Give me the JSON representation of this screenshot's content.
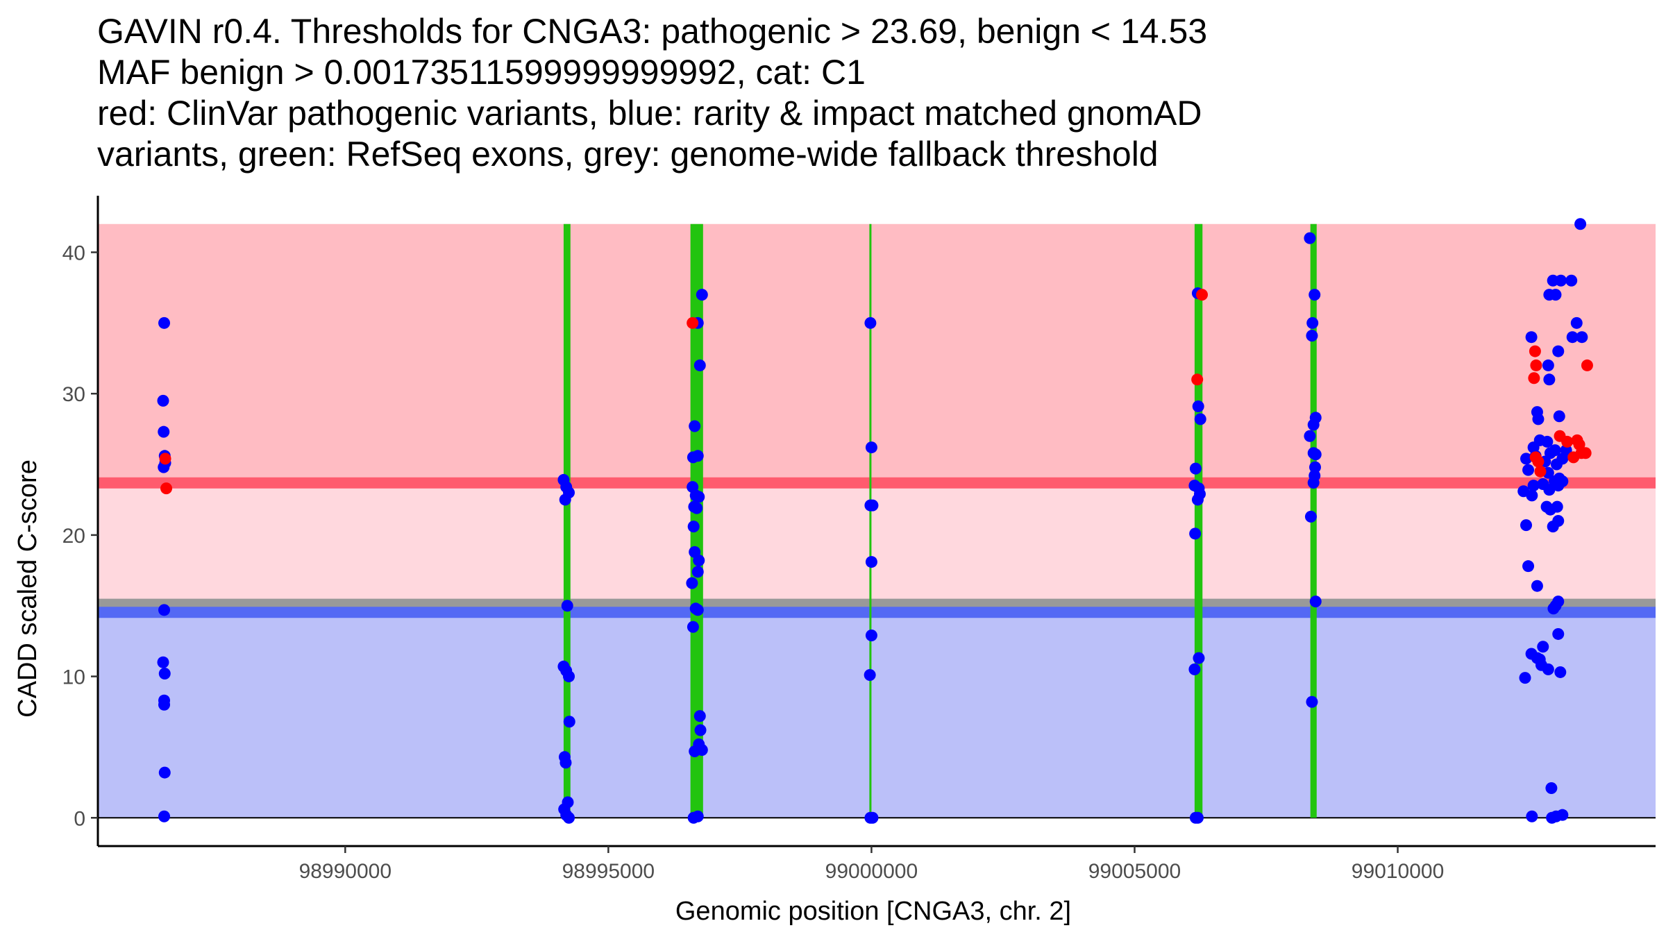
{
  "chart_data": {
    "type": "scatter",
    "title_lines": [
      "GAVIN r0.4. Thresholds for CNGA3: pathogenic > 23.69, benign < 14.53",
      "MAF benign > 0.00173511599999999992, cat: C1",
      "red: ClinVar pathogenic variants, blue: rarity & impact matched gnomAD",
      "variants, green: RefSeq exons, grey: genome-wide fallback threshold"
    ],
    "xlabel": "Genomic position [CNGA3, chr. 2]",
    "ylabel": "CADD scaled C-score",
    "xlim": [
      98985300,
      99014900
    ],
    "ylim": [
      -2,
      44
    ],
    "x_ticks": [
      98990000,
      98995000,
      99000000,
      99005000,
      99010000
    ],
    "x_tick_labels": [
      "98990000",
      "98995000",
      "99000000",
      "99005000",
      "99010000"
    ],
    "y_ticks": [
      0,
      10,
      20,
      30,
      40
    ],
    "y_tick_labels": [
      "0",
      "10",
      "20",
      "30",
      "40"
    ],
    "colors": {
      "pathogenic_region": "#ffbcc3",
      "intermediate_region": "#ffd8de",
      "benign_region": "#bbc0f9",
      "pathogenic_line": "#ff5b6e",
      "benign_line": "#5469f4",
      "fallback_line": "#999999",
      "exon": "#22c40f",
      "clinvar": "#ff0000",
      "gnomad": "#0000ff"
    },
    "thresholds": {
      "pathogenic": 23.69,
      "benign": 14.53,
      "genome_wide_fallback": 15.2,
      "region_top": 42,
      "region_bottom": 0
    },
    "exons": [
      {
        "start": 98994150,
        "end": 98994280
      },
      {
        "start": 98996560,
        "end": 98996800
      },
      {
        "start": 98999960,
        "end": 99000000
      },
      {
        "start": 99006140,
        "end": 99006290
      },
      {
        "start": 99008340,
        "end": 99008460
      }
    ],
    "series": [
      {
        "name": "gnomAD matched variants",
        "color": "#0000ff",
        "points": [
          [
            98986560,
            35.0
          ],
          [
            98986540,
            29.5
          ],
          [
            98986550,
            27.3
          ],
          [
            98986570,
            25.6
          ],
          [
            98986550,
            24.8
          ],
          [
            98986580,
            25.1
          ],
          [
            98986560,
            14.7
          ],
          [
            98986540,
            11.0
          ],
          [
            98986570,
            10.2
          ],
          [
            98986560,
            8.3
          ],
          [
            98986560,
            8.0
          ],
          [
            98986570,
            3.2
          ],
          [
            98986560,
            0.1
          ],
          [
            98994150,
            23.9
          ],
          [
            98994200,
            23.4
          ],
          [
            98994250,
            23.0
          ],
          [
            98994180,
            22.5
          ],
          [
            98994220,
            15.0
          ],
          [
            98994150,
            10.7
          ],
          [
            98994200,
            10.4
          ],
          [
            98994250,
            10.0
          ],
          [
            98994260,
            6.8
          ],
          [
            98994170,
            4.3
          ],
          [
            98994190,
            3.9
          ],
          [
            98994230,
            1.1
          ],
          [
            98994160,
            0.6
          ],
          [
            98994200,
            0.2
          ],
          [
            98994250,
            0.0
          ],
          [
            98996780,
            37.0
          ],
          [
            98996700,
            35.0
          ],
          [
            98996740,
            32.0
          ],
          [
            98996640,
            27.7
          ],
          [
            98996610,
            25.5
          ],
          [
            98996700,
            25.6
          ],
          [
            98996600,
            23.4
          ],
          [
            98996660,
            22.8
          ],
          [
            98996720,
            22.7
          ],
          [
            98996630,
            22.0
          ],
          [
            98996680,
            21.9
          ],
          [
            98996620,
            20.6
          ],
          [
            98996640,
            18.8
          ],
          [
            98996720,
            18.2
          ],
          [
            98996700,
            17.4
          ],
          [
            98996590,
            16.6
          ],
          [
            98996660,
            14.8
          ],
          [
            98996700,
            14.7
          ],
          [
            98996610,
            13.5
          ],
          [
            98996740,
            7.2
          ],
          [
            98996750,
            6.2
          ],
          [
            98996780,
            4.8
          ],
          [
            98996640,
            4.7
          ],
          [
            98996720,
            5.2
          ],
          [
            98996620,
            0.0
          ],
          [
            98996700,
            0.1
          ],
          [
            98999980,
            35.0
          ],
          [
            99000000,
            26.2
          ],
          [
            98999980,
            22.1
          ],
          [
            99000020,
            22.1
          ],
          [
            99000000,
            18.1
          ],
          [
            99000000,
            12.9
          ],
          [
            98999970,
            10.1
          ],
          [
            98999980,
            0.0
          ],
          [
            99000020,
            0.0
          ],
          [
            99006200,
            37.1
          ],
          [
            99006210,
            29.1
          ],
          [
            99006250,
            28.2
          ],
          [
            99006160,
            24.7
          ],
          [
            99006140,
            23.5
          ],
          [
            99006220,
            23.3
          ],
          [
            99006240,
            22.9
          ],
          [
            99006200,
            22.5
          ],
          [
            99006150,
            20.1
          ],
          [
            99006220,
            11.3
          ],
          [
            99006140,
            10.5
          ],
          [
            99006160,
            0.0
          ],
          [
            99006200,
            0.0
          ],
          [
            99008330,
            41.0
          ],
          [
            99008420,
            37.0
          ],
          [
            99008380,
            35.0
          ],
          [
            99008370,
            34.1
          ],
          [
            99008440,
            28.3
          ],
          [
            99008400,
            27.8
          ],
          [
            99008330,
            27.0
          ],
          [
            99008400,
            25.8
          ],
          [
            99008440,
            25.7
          ],
          [
            99008430,
            24.8
          ],
          [
            99008420,
            24.2
          ],
          [
            99008400,
            23.7
          ],
          [
            99008350,
            21.3
          ],
          [
            99008440,
            15.3
          ],
          [
            99008370,
            8.2
          ],
          [
            99012540,
            34.0
          ],
          [
            99012950,
            38.0
          ],
          [
            99013100,
            38.0
          ],
          [
            99013300,
            38.0
          ],
          [
            99012880,
            37.0
          ],
          [
            99013000,
            37.0
          ],
          [
            99013400,
            35.0
          ],
          [
            99013320,
            34.0
          ],
          [
            99013500,
            34.0
          ],
          [
            99012860,
            32.0
          ],
          [
            99013050,
            33.0
          ],
          [
            99012880,
            31.0
          ],
          [
            99012650,
            28.7
          ],
          [
            99013070,
            28.4
          ],
          [
            99012670,
            28.2
          ],
          [
            99012580,
            26.2
          ],
          [
            99012700,
            26.7
          ],
          [
            99012840,
            26.6
          ],
          [
            99012900,
            25.8
          ],
          [
            99012990,
            26.0
          ],
          [
            99013200,
            26.0
          ],
          [
            99012440,
            25.4
          ],
          [
            99012620,
            25.6
          ],
          [
            99012800,
            25.2
          ],
          [
            99013020,
            25.0
          ],
          [
            99013130,
            25.4
          ],
          [
            99012480,
            24.6
          ],
          [
            99012860,
            24.4
          ],
          [
            99012980,
            23.8
          ],
          [
            99013070,
            24.0
          ],
          [
            99013130,
            23.8
          ],
          [
            99012580,
            23.5
          ],
          [
            99012760,
            23.6
          ],
          [
            99012880,
            23.2
          ],
          [
            99013050,
            23.5
          ],
          [
            99012390,
            23.1
          ],
          [
            99012550,
            22.8
          ],
          [
            99012830,
            22.0
          ],
          [
            99012900,
            21.8
          ],
          [
            99013030,
            22.0
          ],
          [
            99012440,
            20.7
          ],
          [
            99012950,
            20.6
          ],
          [
            99013050,
            21.0
          ],
          [
            99012480,
            17.8
          ],
          [
            99012650,
            16.4
          ],
          [
            99013050,
            15.3
          ],
          [
            99013000,
            15.0
          ],
          [
            99012960,
            14.8
          ],
          [
            99012760,
            12.1
          ],
          [
            99012540,
            11.6
          ],
          [
            99012650,
            11.3
          ],
          [
            99012700,
            11.2
          ],
          [
            99013050,
            13.0
          ],
          [
            99012730,
            10.8
          ],
          [
            99012860,
            10.5
          ],
          [
            99013090,
            10.3
          ],
          [
            99012420,
            9.9
          ],
          [
            99012920,
            2.1
          ],
          [
            99012550,
            0.1
          ],
          [
            99012930,
            0.0
          ],
          [
            99013010,
            0.1
          ],
          [
            99013130,
            0.2
          ],
          [
            99013470,
            42.0
          ]
        ]
      },
      {
        "name": "ClinVar pathogenic variants",
        "color": "#ff0000",
        "points": [
          [
            98986580,
            25.4
          ],
          [
            98986600,
            23.3
          ],
          [
            98996600,
            35.0
          ],
          [
            99006280,
            37.0
          ],
          [
            99006190,
            31.0
          ],
          [
            99012610,
            33.0
          ],
          [
            99012630,
            32.0
          ],
          [
            99012590,
            31.1
          ],
          [
            99012620,
            25.5
          ],
          [
            99012670,
            25.2
          ],
          [
            99012710,
            24.5
          ],
          [
            99013080,
            27.0
          ],
          [
            99013220,
            26.6
          ],
          [
            99013410,
            26.7
          ],
          [
            99013450,
            26.4
          ],
          [
            99013490,
            25.8
          ],
          [
            99013340,
            25.5
          ],
          [
            99013570,
            25.8
          ],
          [
            99013600,
            32.0
          ]
        ]
      }
    ]
  }
}
